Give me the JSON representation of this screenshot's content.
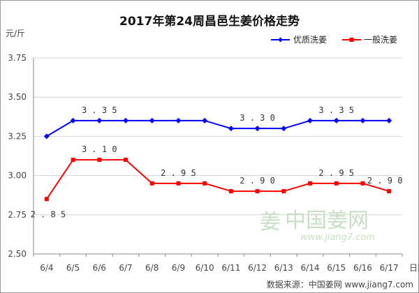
{
  "chart_data": {
    "type": "line",
    "title": "2017年第24周昌邑生姜价格走势",
    "ylabel": "元/斤",
    "xlabel": "日期",
    "categories": [
      "6/4",
      "6/5",
      "6/6",
      "6/7",
      "6/8",
      "6/9",
      "6/10",
      "6/11",
      "6/12",
      "6/13",
      "6/14",
      "6/15",
      "6/16",
      "6/17"
    ],
    "ylim": [
      2.5,
      3.75
    ],
    "yticks": [
      "2.50",
      "2.75",
      "3.00",
      "3.25",
      "3.50",
      "3.75"
    ],
    "grid": "horizontal",
    "legend_position": "top-right",
    "series": [
      {
        "name": "优质洗姜",
        "color": "#0000ff",
        "values": [
          3.25,
          3.35,
          3.35,
          3.35,
          3.35,
          3.35,
          3.35,
          3.3,
          3.3,
          3.3,
          3.35,
          3.35,
          3.35,
          3.35
        ],
        "labels": [
          {
            "index": 2,
            "text": "3.35"
          },
          {
            "index": 8,
            "text": "3.30"
          },
          {
            "index": 11,
            "text": "3.35"
          }
        ]
      },
      {
        "name": "一般洗姜",
        "color": "#ff0000",
        "values": [
          2.85,
          3.1,
          3.1,
          3.1,
          2.95,
          2.95,
          2.95,
          2.9,
          2.9,
          2.9,
          2.95,
          2.95,
          2.95,
          2.9
        ],
        "labels": [
          {
            "index": 0,
            "text": "2.85"
          },
          {
            "index": 2,
            "text": "3.10"
          },
          {
            "index": 5,
            "text": "2.95"
          },
          {
            "index": 8,
            "text": "2.90"
          },
          {
            "index": 11,
            "text": "2.95"
          },
          {
            "index": 13,
            "text": "2.90"
          }
        ]
      }
    ]
  },
  "watermark": {
    "text_cn": "中国姜网",
    "url": "www.jiang7.com"
  },
  "source": "数据来源：中国姜网 www.jiang7.com"
}
